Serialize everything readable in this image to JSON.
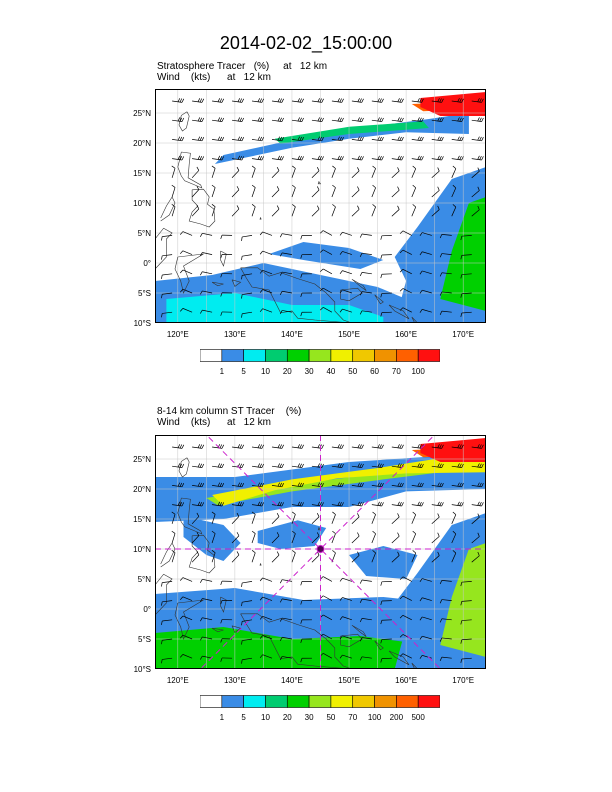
{
  "main_title": "2014-02-02_15:00:00",
  "panels": [
    {
      "line1": "Stratosphere Tracer   (%)     at   12 km",
      "line2": "Wind    (kts)      at   12 km",
      "lat_labels": [
        "25°N",
        "20°N",
        "15°N",
        "10°N",
        "5°N",
        "0°",
        "5°S",
        "10°S"
      ],
      "lon_labels": [
        "120°E",
        "130°E",
        "140°E",
        "150°E",
        "160°E",
        "170°E"
      ],
      "colorbar": {
        "labels": [
          "1",
          "5",
          "10",
          "20",
          "30",
          "40",
          "50",
          "60",
          "70",
          "100"
        ],
        "colors": [
          "#ffffff",
          "#3a8ce6",
          "#00ecf0",
          "#00cc70",
          "#00d000",
          "#96e61e",
          "#f0f000",
          "#f0c800",
          "#f09200",
          "#ff6000",
          "#ff1010"
        ]
      }
    },
    {
      "line1": "8-14 km column ST Tracer    (%)",
      "line2": "Wind    (kts)      at   12 km",
      "lat_labels": [
        "25°N",
        "20°N",
        "15°N",
        "10°N",
        "5°N",
        "0°",
        "5°S",
        "10°S"
      ],
      "lon_labels": [
        "120°E",
        "130°E",
        "140°E",
        "150°E",
        "160°E",
        "170°E"
      ],
      "colorbar": {
        "labels": [
          "1",
          "5",
          "10",
          "20",
          "30",
          "50",
          "70",
          "100",
          "200",
          "500"
        ],
        "colors": [
          "#ffffff",
          "#3a8ce6",
          "#00ecf0",
          "#00cc70",
          "#00d000",
          "#96e61e",
          "#f0f000",
          "#f0c800",
          "#f09200",
          "#ff6000",
          "#ff1010"
        ]
      }
    }
  ],
  "map": {
    "lon_range": [
      116,
      174
    ],
    "lat_range": [
      -10,
      29
    ],
    "marker": {
      "lon": 145,
      "lat": 10,
      "color": "#cc22cc"
    }
  }
}
